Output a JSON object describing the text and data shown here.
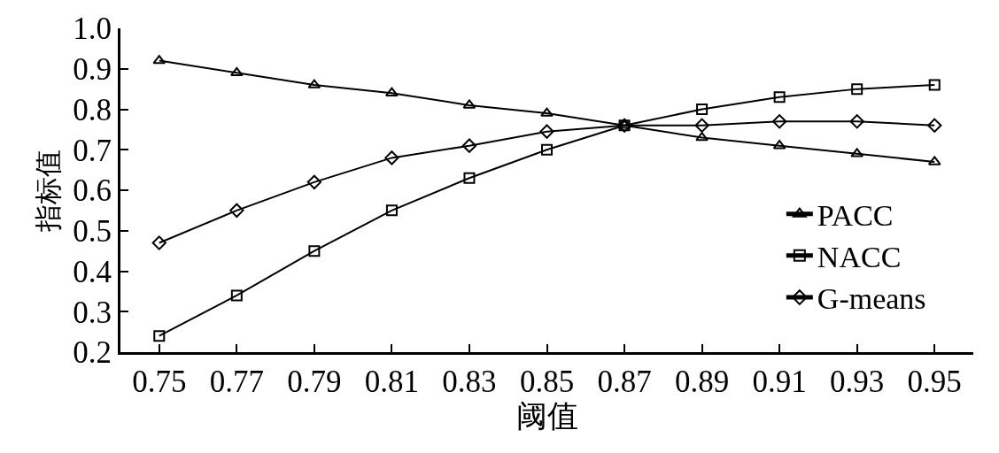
{
  "chart_data": {
    "type": "line",
    "xlabel": "阈值",
    "ylabel": "指标值",
    "x": [
      0.75,
      0.77,
      0.79,
      0.81,
      0.83,
      0.85,
      0.87,
      0.89,
      0.91,
      0.93,
      0.95
    ],
    "series": [
      {
        "name": "PACC",
        "color": "#000000",
        "marker": "triangle",
        "values": [
          0.92,
          0.89,
          0.86,
          0.84,
          0.81,
          0.79,
          0.76,
          0.73,
          0.71,
          0.69,
          0.67
        ]
      },
      {
        "name": "NACC",
        "color": "#000000",
        "marker": "square",
        "values": [
          0.24,
          0.34,
          0.45,
          0.55,
          0.63,
          0.7,
          0.76,
          0.8,
          0.83,
          0.85,
          0.86
        ]
      },
      {
        "name": "G-means",
        "color": "#000000",
        "marker": "diamond",
        "values": [
          0.47,
          0.55,
          0.62,
          0.68,
          0.71,
          0.745,
          0.76,
          0.76,
          0.77,
          0.77,
          0.76
        ]
      }
    ],
    "xlim": [
      0.74,
      0.96
    ],
    "xticks": [
      0.75,
      0.77,
      0.79,
      0.81,
      0.83,
      0.85,
      0.87,
      0.89,
      0.91,
      0.93,
      0.95
    ],
    "ylim": [
      0.2,
      1.0
    ],
    "yticks": [
      0.2,
      0.3,
      0.4,
      0.5,
      0.6,
      0.7,
      0.8,
      0.9,
      {
        "value": 1.0,
        "label": "1.0"
      }
    ],
    "line_style": "solid",
    "legend": "bottom right"
  }
}
